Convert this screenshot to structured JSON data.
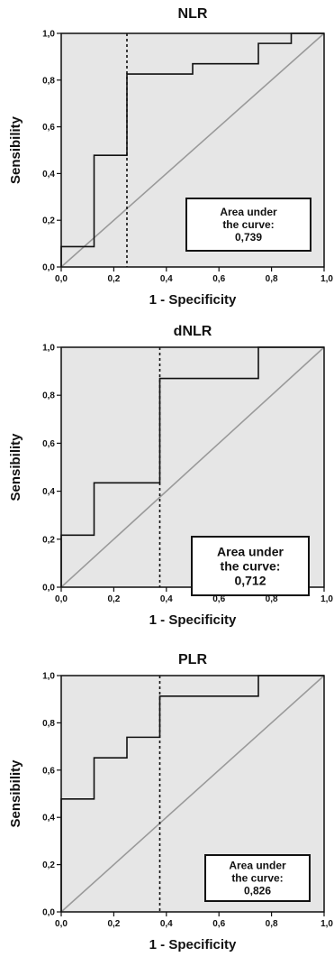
{
  "chart_data": [
    {
      "type": "line",
      "title": "NLR",
      "xlabel": "1 - Specificity",
      "ylabel": "Sensibility",
      "xlim": [
        0,
        1
      ],
      "ylim": [
        0,
        1
      ],
      "x_ticks": [
        "0,0",
        "0,2",
        "0,4",
        "0,6",
        "0,8",
        "1,0"
      ],
      "y_ticks": [
        "0,0",
        "0,2",
        "0,4",
        "0,6",
        "0,8",
        "1,0"
      ],
      "roc_curve": {
        "x": [
          0,
          0,
          0.125,
          0.125,
          0.25,
          0.25,
          0.5,
          0.5,
          0.75,
          0.75,
          0.875,
          0.875,
          1
        ],
        "y": [
          0,
          0.087,
          0.087,
          0.478,
          0.478,
          0.826,
          0.826,
          0.87,
          0.87,
          0.957,
          0.957,
          1,
          1
        ]
      },
      "reference_line": {
        "x": [
          0,
          1
        ],
        "y": [
          0,
          1
        ]
      },
      "cutoff_x": 0.25,
      "auc_box": {
        "line1": "Area under",
        "line2": "the curve:",
        "value": "0,739",
        "position": "bottom-right"
      },
      "grid": false
    },
    {
      "type": "line",
      "title": "dNLR",
      "xlabel": "1 - Specificity",
      "ylabel": "Sensibility",
      "xlim": [
        0,
        1
      ],
      "ylim": [
        0,
        1
      ],
      "x_ticks": [
        "0,0",
        "0,2",
        "0,4",
        "0,6",
        "0,8",
        "1,0"
      ],
      "y_ticks": [
        "0,0",
        "0,2",
        "0,4",
        "0,6",
        "0,8",
        "1,0"
      ],
      "roc_curve": {
        "x": [
          0,
          0,
          0.125,
          0.125,
          0.375,
          0.375,
          0.75,
          0.75,
          1
        ],
        "y": [
          0,
          0.217,
          0.217,
          0.435,
          0.435,
          0.87,
          0.87,
          1,
          1
        ]
      },
      "reference_line": {
        "x": [
          0,
          1
        ],
        "y": [
          0,
          1
        ]
      },
      "cutoff_x": 0.375,
      "auc_box": {
        "line1": "Area under",
        "line2": "the curve:",
        "value": "0,712",
        "position": "bottom-right"
      },
      "grid": false
    },
    {
      "type": "line",
      "title": "PLR",
      "xlabel": "1 - Specificity",
      "ylabel": "Sensibility",
      "xlim": [
        0,
        1
      ],
      "ylim": [
        0,
        1
      ],
      "x_ticks": [
        "0,0",
        "0,2",
        "0,4",
        "0,6",
        "0,8",
        "1,0"
      ],
      "y_ticks": [
        "0,0",
        "0,2",
        "0,4",
        "0,6",
        "0,8",
        "1,0"
      ],
      "roc_curve": {
        "x": [
          0,
          0,
          0.125,
          0.125,
          0.25,
          0.25,
          0.375,
          0.375,
          0.75,
          0.75,
          1
        ],
        "y": [
          0,
          0.478,
          0.478,
          0.652,
          0.652,
          0.739,
          0.739,
          0.913,
          0.913,
          1,
          1
        ]
      },
      "reference_line": {
        "x": [
          0,
          1
        ],
        "y": [
          0,
          1
        ]
      },
      "cutoff_x": 0.375,
      "auc_box": {
        "line1": "Area under",
        "line2": "the curve:",
        "value": "0,826",
        "position": "bottom-right"
      },
      "grid": false
    }
  ],
  "colors": {
    "plot_background": "#e6e6e6",
    "roc_line": "#111111",
    "reference_line": "#9a9a9a",
    "cutoff_line": "#111111",
    "box_fill": "#ffffff"
  }
}
